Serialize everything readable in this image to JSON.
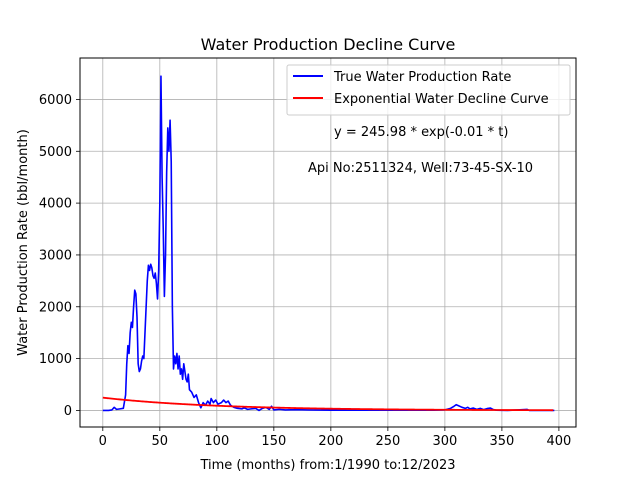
{
  "chart_data": {
    "type": "line",
    "title": "Water Production Decline Curve",
    "xlabel": "Time (months) from:1/1990 to:12/2023",
    "ylabel": "Water Production Rate (bbl/month)",
    "xlim": [
      -20,
      415
    ],
    "ylim": [
      -320,
      6800
    ],
    "xticks": [
      0,
      50,
      100,
      150,
      200,
      250,
      300,
      350,
      400
    ],
    "yticks": [
      0,
      1000,
      2000,
      3000,
      4000,
      5000,
      6000
    ],
    "grid": true,
    "legend_position": "top-right",
    "annotations": {
      "equation": "y = 245.98 * exp(-0.01 * t)",
      "well_info": "Api No:2511324, Well:73-45-SX-10"
    },
    "series": [
      {
        "name": "True Water Production Rate",
        "color": "#0000ff",
        "points": [
          [
            0,
            0
          ],
          [
            5,
            0
          ],
          [
            8,
            10
          ],
          [
            10,
            60
          ],
          [
            12,
            20
          ],
          [
            15,
            30
          ],
          [
            18,
            40
          ],
          [
            20,
            300
          ],
          [
            21,
            900
          ],
          [
            22,
            1250
          ],
          [
            23,
            1100
          ],
          [
            24,
            1500
          ],
          [
            25,
            1700
          ],
          [
            26,
            1600
          ],
          [
            27,
            2000
          ],
          [
            28,
            2320
          ],
          [
            29,
            2250
          ],
          [
            30,
            1800
          ],
          [
            31,
            900
          ],
          [
            32,
            750
          ],
          [
            33,
            800
          ],
          [
            34,
            950
          ],
          [
            35,
            1050
          ],
          [
            36,
            1000
          ],
          [
            37,
            1500
          ],
          [
            38,
            2000
          ],
          [
            39,
            2500
          ],
          [
            40,
            2800
          ],
          [
            41,
            2700
          ],
          [
            42,
            2820
          ],
          [
            43,
            2750
          ],
          [
            44,
            2600
          ],
          [
            45,
            2550
          ],
          [
            46,
            2650
          ],
          [
            47,
            2450
          ],
          [
            48,
            2150
          ],
          [
            49,
            2700
          ],
          [
            50,
            4000
          ],
          [
            51,
            6450
          ],
          [
            52,
            4500
          ],
          [
            53,
            3500
          ],
          [
            54,
            2200
          ],
          [
            55,
            3000
          ],
          [
            56,
            4600
          ],
          [
            57,
            5450
          ],
          [
            58,
            5000
          ],
          [
            59,
            5600
          ],
          [
            60,
            4800
          ],
          [
            61,
            2000
          ],
          [
            62,
            800
          ],
          [
            63,
            1050
          ],
          [
            64,
            900
          ],
          [
            65,
            1100
          ],
          [
            66,
            800
          ],
          [
            67,
            1050
          ],
          [
            68,
            700
          ],
          [
            69,
            800
          ],
          [
            70,
            600
          ],
          [
            71,
            900
          ],
          [
            72,
            750
          ],
          [
            73,
            600
          ],
          [
            74,
            550
          ],
          [
            75,
            700
          ],
          [
            76,
            400
          ],
          [
            78,
            350
          ],
          [
            80,
            250
          ],
          [
            82,
            300
          ],
          [
            84,
            150
          ],
          [
            86,
            50
          ],
          [
            88,
            150
          ],
          [
            90,
            100
          ],
          [
            92,
            180
          ],
          [
            94,
            120
          ],
          [
            95,
            230
          ],
          [
            97,
            150
          ],
          [
            99,
            200
          ],
          [
            101,
            120
          ],
          [
            104,
            150
          ],
          [
            106,
            200
          ],
          [
            108,
            150
          ],
          [
            110,
            180
          ],
          [
            112,
            100
          ],
          [
            115,
            60
          ],
          [
            118,
            40
          ],
          [
            122,
            30
          ],
          [
            124,
            50
          ],
          [
            127,
            20
          ],
          [
            130,
            30
          ],
          [
            134,
            40
          ],
          [
            137,
            0
          ],
          [
            140,
            40
          ],
          [
            143,
            60
          ],
          [
            146,
            20
          ],
          [
            148,
            80
          ],
          [
            150,
            10
          ],
          [
            155,
            20
          ],
          [
            160,
            10
          ],
          [
            170,
            15
          ],
          [
            180,
            10
          ],
          [
            200,
            5
          ],
          [
            230,
            5
          ],
          [
            260,
            5
          ],
          [
            290,
            5
          ],
          [
            300,
            10
          ],
          [
            305,
            40
          ],
          [
            308,
            80
          ],
          [
            310,
            110
          ],
          [
            312,
            90
          ],
          [
            315,
            60
          ],
          [
            318,
            40
          ],
          [
            320,
            60
          ],
          [
            322,
            30
          ],
          [
            325,
            45
          ],
          [
            328,
            20
          ],
          [
            331,
            40
          ],
          [
            334,
            15
          ],
          [
            337,
            35
          ],
          [
            340,
            45
          ],
          [
            342,
            20
          ],
          [
            345,
            5
          ],
          [
            355,
            0
          ],
          [
            372,
            20
          ],
          [
            374,
            0
          ],
          [
            380,
            0
          ],
          [
            396,
            0
          ]
        ]
      },
      {
        "name": "Exponential Water Decline Curve",
        "color": "#ff0000",
        "model": {
          "a": 245.98,
          "b": 0.01,
          "t_start": 0,
          "t_end": 395
        }
      }
    ]
  }
}
